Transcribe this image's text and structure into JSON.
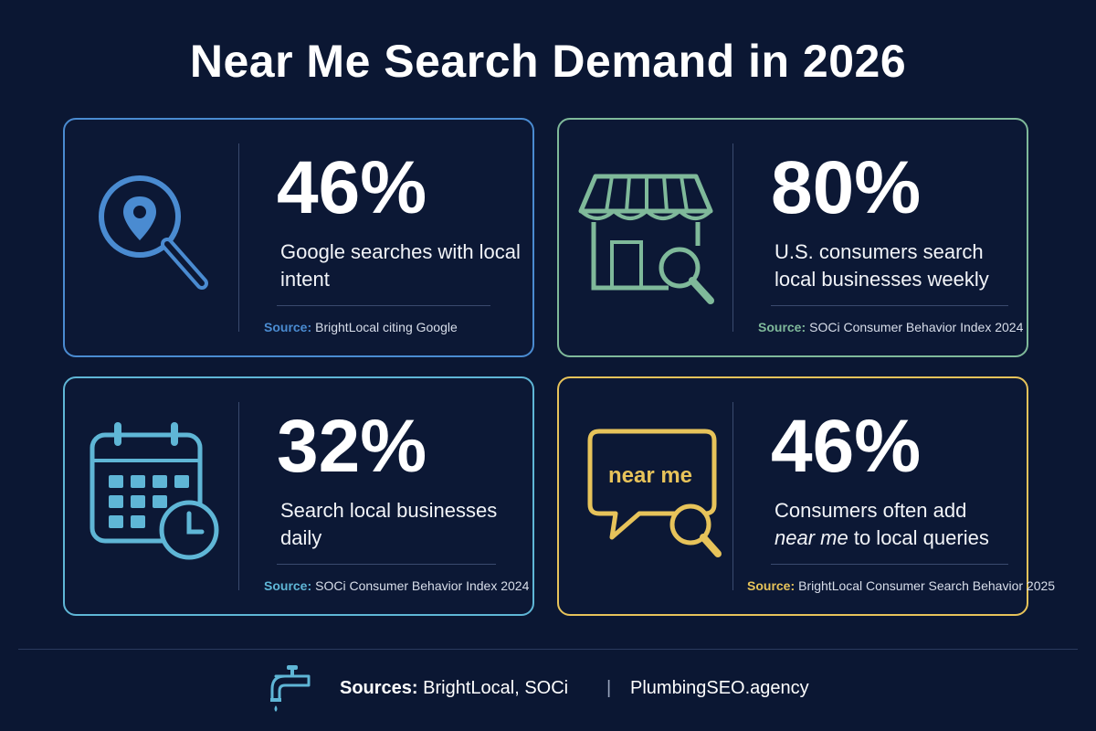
{
  "title": "Near Me Search Demand in 2026",
  "colors": {
    "background": "#0b1733",
    "blue": "#4a8bd1",
    "green": "#7fb99a",
    "teal": "#5fb6d6",
    "yellow": "#e7c35a"
  },
  "cards": [
    {
      "stat": "46%",
      "description": "Google searches with local intent",
      "source_label": "Source:",
      "source_text": "BrightLocal citing Google",
      "icon": "location-search-icon",
      "color": "#4a8bd1"
    },
    {
      "stat": "80%",
      "description": "U.S. consumers search local businesses weekly",
      "source_label": "Source:",
      "source_text": "SOCi Consumer Behavior Index 2024",
      "icon": "storefront-search-icon",
      "color": "#7fb99a"
    },
    {
      "stat": "32%",
      "description": "Search local businesses daily",
      "source_label": "Source:",
      "source_text": "SOCi Consumer Behavior Index 2024",
      "icon": "calendar-clock-icon",
      "color": "#5fb6d6"
    },
    {
      "stat": "46%",
      "description_prefix": "Consumers often add",
      "description_emphasis": "near me",
      "description_suffix": "to local queries",
      "bubble_text": "near me",
      "source_label": "Source:",
      "source_text": "BrightLocal Consumer Search Behavior 2025",
      "icon": "speech-bubble-search-icon",
      "color": "#e7c35a"
    }
  ],
  "footer": {
    "sources_label": "Sources:",
    "sources_text": "BrightLocal, SOCi",
    "separator": "|",
    "site": "PlumbingSEO.agency",
    "icon": "faucet-icon"
  }
}
